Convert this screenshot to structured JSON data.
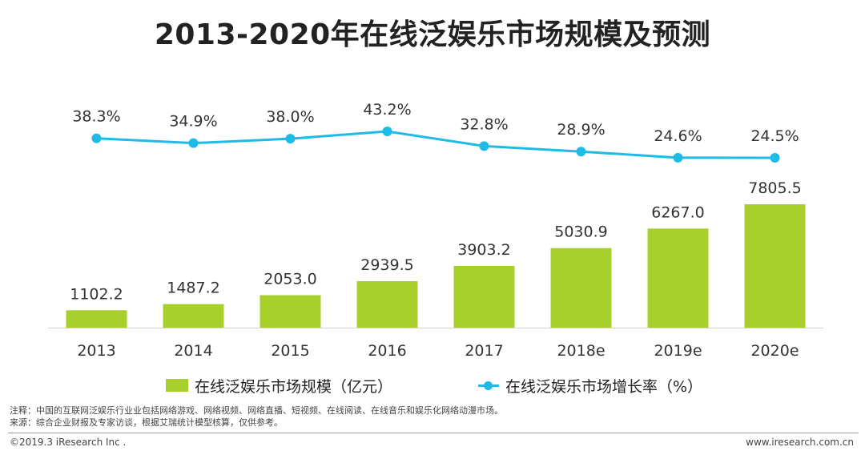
{
  "title": "2013-2020年在线泛娱乐市场规模及预测",
  "chart_data": {
    "type": "bar",
    "categories": [
      "2013",
      "2014",
      "2015",
      "2016",
      "2017",
      "2018e",
      "2019e",
      "2020e"
    ],
    "series": [
      {
        "name": "在线泛娱乐市场规模（亿元）",
        "type": "bar",
        "color": "#a8d02c",
        "values": [
          1102.2,
          1487.2,
          2053.0,
          2939.5,
          3903.2,
          5030.9,
          6267.0,
          7805.5
        ],
        "labels": [
          "1102.2",
          "1487.2",
          "2053.0",
          "2939.5",
          "3903.2",
          "5030.9",
          "6267.0",
          "7805.5"
        ]
      },
      {
        "name": "在线泛娱乐市场增长率（%）",
        "type": "line",
        "color": "#1ebbe6",
        "values": [
          38.3,
          34.9,
          38.0,
          43.2,
          32.8,
          28.9,
          24.6,
          24.5
        ],
        "labels": [
          "38.3%",
          "34.9%",
          "38.0%",
          "43.2%",
          "32.8%",
          "28.9%",
          "24.6%",
          "24.5%"
        ]
      }
    ],
    "legend_position": "bottom",
    "grid": false
  },
  "legend": {
    "bar_label": "在线泛娱乐市场规模（亿元）",
    "line_label": "在线泛娱乐市场增长率（%）"
  },
  "notes": {
    "note": "注释：中国的互联网泛娱乐行业业包括网络游戏、网络视频、网络直播、短视频、在线阅读、在线音乐和娱乐化网络动漫市场。",
    "source": "来源：综合企业财报及专家访谈，根据艾瑞统计模型核算，仅供参考。"
  },
  "footer": {
    "copyright": "©2019.3 iResearch Inc .",
    "website": "www.iresearch.com.cn"
  }
}
